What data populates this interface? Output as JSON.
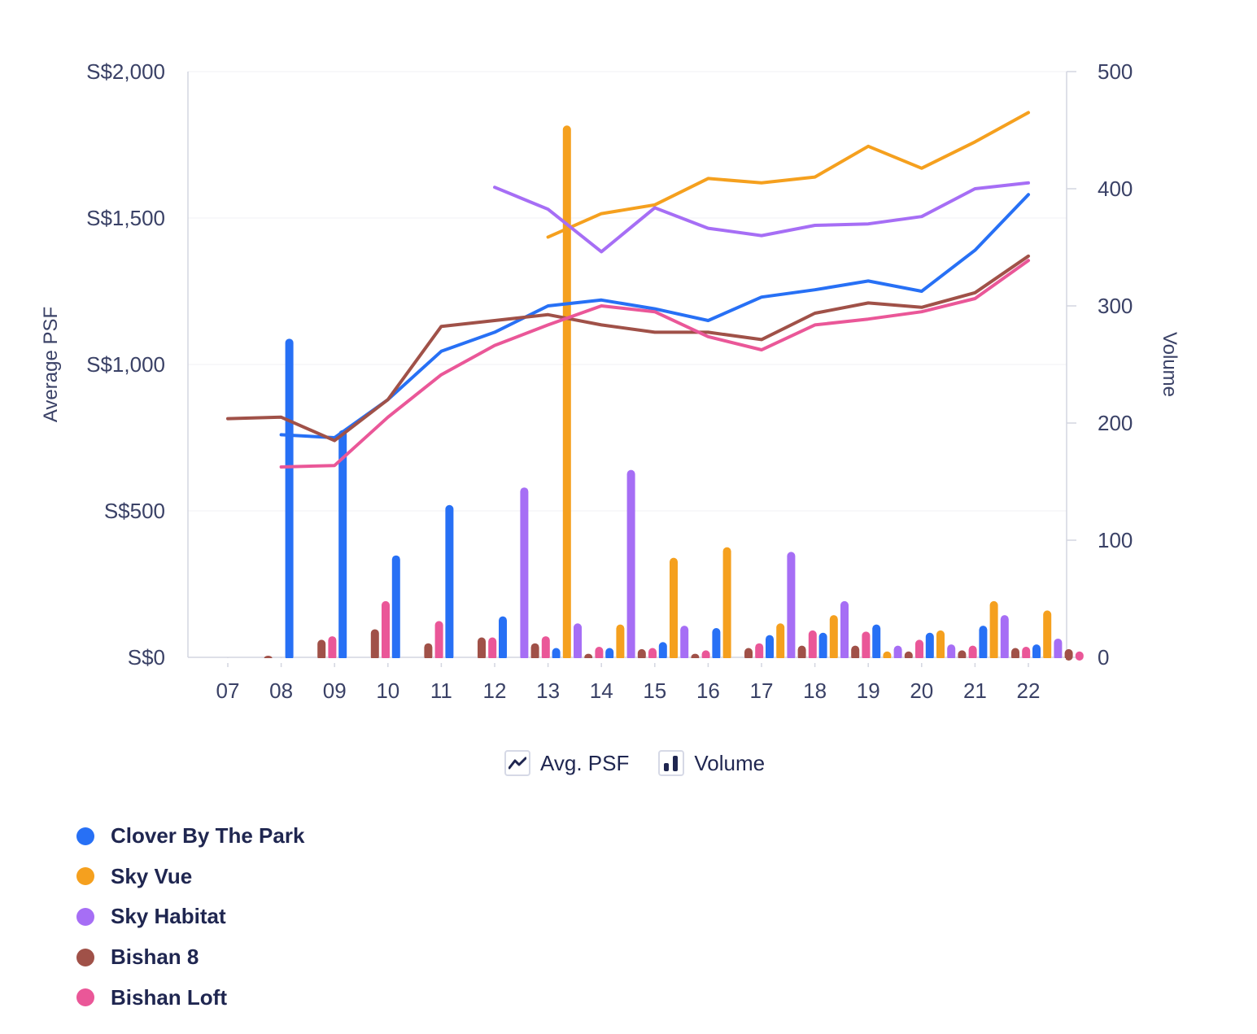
{
  "chart_data": {
    "type": "bar+line",
    "categories": [
      "07",
      "08",
      "09",
      "10",
      "11",
      "12",
      "13",
      "14",
      "15",
      "16",
      "17",
      "18",
      "19",
      "20",
      "21",
      "22"
    ],
    "y_left": {
      "label": "Average PSF",
      "ticks": [
        "S$0",
        "S$500",
        "S$1,000",
        "S$1,500",
        "S$2,000"
      ],
      "range": [
        0,
        2000
      ]
    },
    "y_right": {
      "label": "Volume",
      "ticks": [
        "0",
        "100",
        "200",
        "300",
        "400",
        "500"
      ],
      "range": [
        0,
        500
      ]
    },
    "series": [
      {
        "name": "Clover By The Park",
        "color": "#2770f5",
        "psf": [
          null,
          760,
          750,
          880,
          1045,
          1110,
          1200,
          1220,
          1190,
          1150,
          1230,
          1255,
          1285,
          1250,
          1390,
          1580
        ],
        "volume": [
          0,
          272,
          194,
          87,
          130,
          35,
          8,
          8,
          13,
          25,
          19,
          21,
          28,
          21,
          27,
          11
        ]
      },
      {
        "name": "Sky Vue",
        "color": "#f5a01e",
        "psf": [
          null,
          null,
          null,
          null,
          null,
          null,
          1435,
          1515,
          1545,
          1635,
          1620,
          1640,
          1745,
          1670,
          1760,
          1860
        ],
        "volume": [
          0,
          0,
          0,
          0,
          0,
          0,
          454,
          28,
          85,
          94,
          29,
          36,
          5,
          23,
          48,
          40
        ]
      },
      {
        "name": "Sky Habitat",
        "color": "#a66ef5",
        "psf": [
          null,
          null,
          null,
          null,
          null,
          1605,
          1530,
          1385,
          1535,
          1465,
          1440,
          1475,
          1480,
          1505,
          1600,
          1620
        ],
        "volume": [
          0,
          0,
          0,
          0,
          0,
          145,
          29,
          160,
          27,
          0,
          90,
          48,
          10,
          11,
          36,
          16
        ]
      },
      {
        "name": "Bishan 8",
        "color": "#a05148",
        "psf": [
          815,
          820,
          740,
          880,
          1130,
          1150,
          1170,
          1135,
          1110,
          1110,
          1085,
          1175,
          1210,
          1195,
          1245,
          1370
        ],
        "volume": [
          1,
          15,
          24,
          12,
          17,
          12,
          3,
          7,
          3,
          8,
          10,
          10,
          5,
          6,
          8,
          7
        ]
      },
      {
        "name": "Bishan Loft",
        "color": "#ea5798",
        "psf": [
          null,
          650,
          655,
          820,
          965,
          1065,
          1135,
          1200,
          1180,
          1095,
          1050,
          1135,
          1155,
          1180,
          1225,
          1355
        ],
        "volume": [
          0,
          18,
          48,
          31,
          17,
          18,
          9,
          8,
          6,
          12,
          23,
          22,
          15,
          10,
          9,
          5
        ]
      }
    ],
    "grid": true
  },
  "toggles": {
    "line_label": "Avg. PSF",
    "bar_label": "Volume"
  },
  "legend": [
    {
      "label": "Clover By The Park",
      "color": "#2770f5"
    },
    {
      "label": "Sky Vue",
      "color": "#f5a01e"
    },
    {
      "label": "Sky Habitat",
      "color": "#a66ef5"
    },
    {
      "label": "Bishan 8",
      "color": "#a05148"
    },
    {
      "label": "Bishan Loft",
      "color": "#ea5798"
    }
  ]
}
